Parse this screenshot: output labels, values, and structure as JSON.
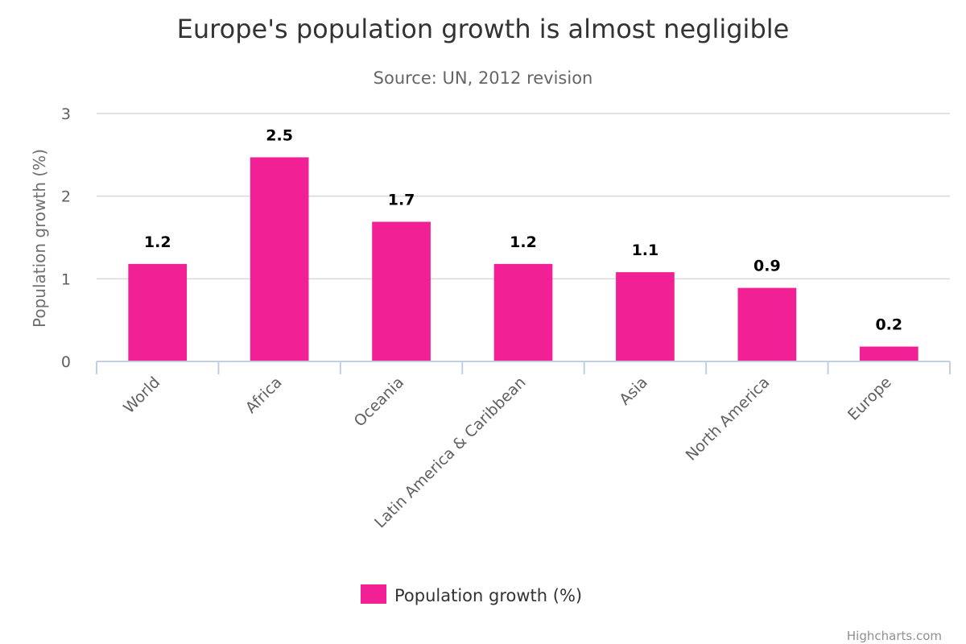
{
  "chart_data": {
    "type": "bar",
    "title": "Europe's population growth is almost negligible",
    "subtitle": "Source: UN, 2012 revision",
    "ylabel": "Population growth (%)",
    "xlabel": "",
    "categories": [
      "World",
      "Africa",
      "Oceania",
      "Latin America & Caribbean",
      "Asia",
      "North America",
      "Europe"
    ],
    "series": [
      {
        "name": "Population growth (%)",
        "values": [
          1.18,
          2.47,
          1.69,
          1.18,
          1.08,
          0.89,
          0.18
        ],
        "labels": [
          "1.2",
          "2.5",
          "1.7",
          "1.2",
          "1.1",
          "0.9",
          "0.2"
        ]
      }
    ],
    "ylim": [
      0,
      3
    ],
    "yticks": [
      "0",
      "1",
      "2",
      "3"
    ],
    "grid": true,
    "legend_position": "bottom-center",
    "colors": {
      "bar": "#f22095",
      "grid": "#d8d8d8",
      "axis": "#c0d0e0"
    },
    "credits": "Highcharts.com"
  }
}
